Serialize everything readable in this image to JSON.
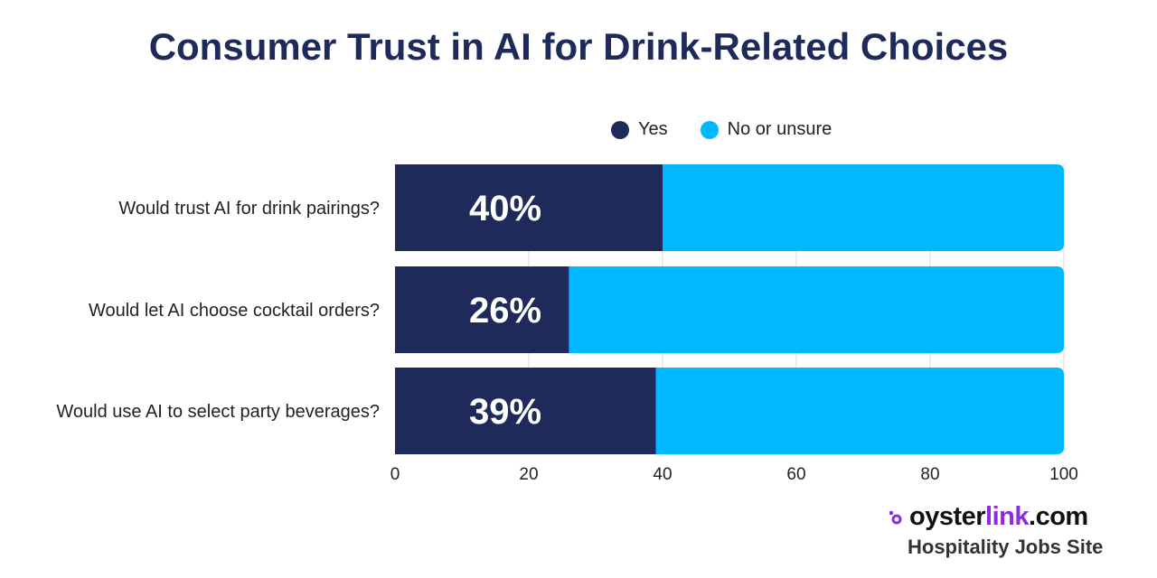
{
  "chart_data": {
    "type": "bar",
    "orientation": "horizontal",
    "stacked": true,
    "title": "Consumer Trust in AI for Drink-Related Choices",
    "categories": [
      "Would trust AI for drink pairings?",
      "Would let AI choose cocktail orders?",
      "Would use AI to select party beverages?"
    ],
    "series": [
      {
        "name": "Yes",
        "values": [
          40,
          26,
          39
        ],
        "color": "#1e2a5a"
      },
      {
        "name": "No or unsure",
        "values": [
          60,
          74,
          61
        ],
        "color": "#00b8ff"
      }
    ],
    "data_labels": [
      "40%",
      "26%",
      "39%"
    ],
    "xlim": [
      0,
      100
    ],
    "xticks": [
      "0",
      "20",
      "40",
      "60",
      "80",
      "100"
    ],
    "grid": true,
    "legend_position": "top"
  },
  "branding": {
    "logo_prefix": "oyster",
    "logo_accent": "link",
    "logo_suffix": ".com",
    "tagline": "Hospitality Jobs Site",
    "accent_color": "#8b2be2"
  }
}
